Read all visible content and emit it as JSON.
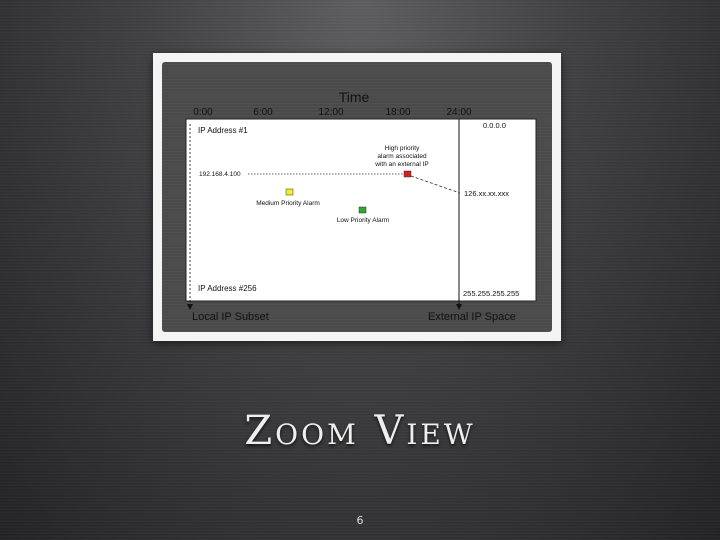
{
  "diagram": {
    "time_label": "Time",
    "time_ticks": [
      "0:00",
      "6:00",
      "12:00",
      "18:00",
      "24:00"
    ],
    "ip_first": "IP Address #1",
    "ip_last": "IP Address #256",
    "local_ip": "192.168.4.100",
    "ext_ip_top": "0.0.0.0",
    "ext_ip_mid": "126.xx.xx.xxx",
    "ext_ip_bottom": "255.255.255.255",
    "high_alarm_line1": "High priority",
    "high_alarm_line2": "alarm associated",
    "high_alarm_line3": "with an external IP",
    "medium_alarm": "Medium Priority Alarm",
    "low_alarm": "Low Priority Alarm",
    "local_subset": "Local IP Subset",
    "external_space": "External IP Space",
    "colors": {
      "high": "#d42020",
      "medium": "#f2ee1a",
      "low": "#2ea832"
    }
  },
  "slide": {
    "title": "Zoom View",
    "page_number": "6"
  }
}
